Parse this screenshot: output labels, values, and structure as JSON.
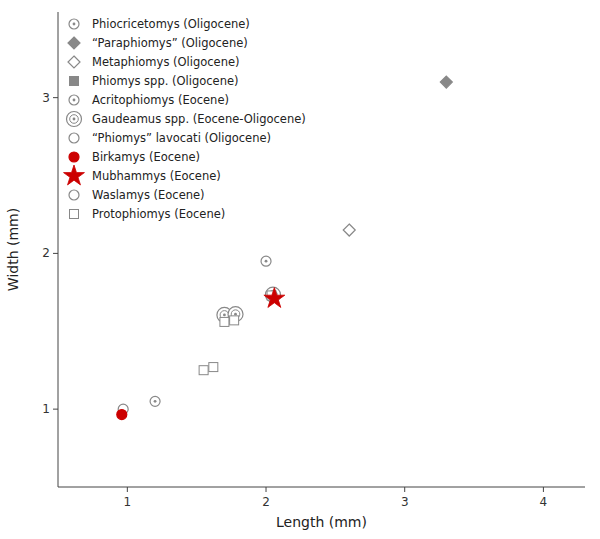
{
  "chart_data": {
    "type": "scatter",
    "xlabel": "Length (mm)",
    "ylabel": "Width (mm)",
    "xlim": [
      0.5,
      4.3
    ],
    "ylim": [
      0.5,
      3.55
    ],
    "xticks": [
      1.0,
      2.0,
      3.0,
      4.0
    ],
    "yticks": [
      1.0,
      2.0,
      3.0
    ],
    "legend": "upper left",
    "series": [
      {
        "name": "Phiocricetomys (Oligocene)",
        "color": "#888888",
        "marker": "circle-dot",
        "x": [],
        "values": []
      },
      {
        "name": "“Paraphiomys” (Oligocene)",
        "color": "#888888",
        "marker": "diamond",
        "x": [
          3.3
        ],
        "values": [
          3.1
        ]
      },
      {
        "name": "Metaphiomys (Oligocene)",
        "color": "#888888",
        "marker": "diamond-open",
        "x": [
          2.6
        ],
        "values": [
          2.15
        ]
      },
      {
        "name": "Phiomys spp. (Oligocene)",
        "color": "#888888",
        "marker": "square",
        "x": [],
        "values": []
      },
      {
        "name": "Acritophiomys (Eocene)",
        "color": "#888888",
        "marker": "circle-dot",
        "x": [
          1.2,
          2.0
        ],
        "values": [
          1.05,
          1.95
        ]
      },
      {
        "name": "Gaudeamus spp. (Eocene-Oligocene)",
        "color": "#888888",
        "marker": "circle-double",
        "x": [
          1.7,
          1.78,
          2.05
        ],
        "values": [
          1.605,
          1.61,
          1.735
        ]
      },
      {
        "name": "“Phiomys” lavocati (Oligocene)",
        "color": "#888888",
        "marker": "circle-open",
        "x": [
          0.97
        ],
        "values": [
          1.0
        ]
      },
      {
        "name": "Birkamys (Eocene)",
        "color": "#cc0000",
        "marker": "circle",
        "x": [
          0.96
        ],
        "values": [
          0.965
        ]
      },
      {
        "name": "Mubhammys (Eocene)",
        "color": "#cc0000",
        "marker": "star",
        "x": [
          2.06
        ],
        "values": [
          1.71
        ]
      },
      {
        "name": "Waslamys (Eocene)",
        "color": "#888888",
        "marker": "circle-open",
        "x": [],
        "values": []
      },
      {
        "name": "Protophiomys (Eocene)",
        "color": "#888888",
        "marker": "square-open",
        "x": [
          1.55,
          1.62,
          1.7,
          1.77,
          2.04
        ],
        "values": [
          1.25,
          1.27,
          1.56,
          1.57,
          1.73
        ]
      }
    ]
  }
}
